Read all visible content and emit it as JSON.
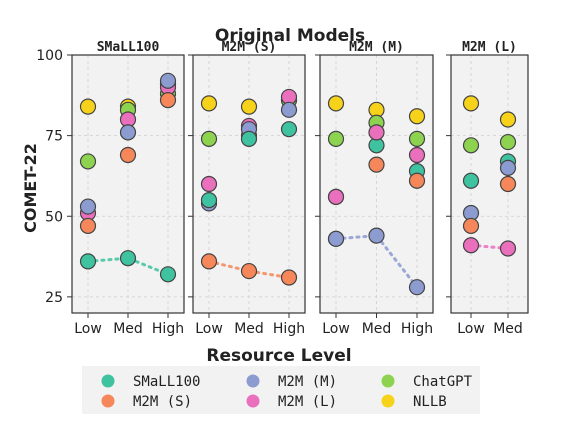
{
  "chart_data": {
    "type": "scatter",
    "title": "Original Models",
    "xlabel": "Resource Level",
    "ylabel": "COMET-22",
    "ylim": [
      20,
      100
    ],
    "yticks": [
      25,
      50,
      75,
      100
    ],
    "grid": true,
    "legend": {
      "placement": "bottom",
      "entries": [
        {
          "name": "SMaLL100",
          "color": "#3ec2a0"
        },
        {
          "name": "M2M (S)",
          "color": "#f5875a"
        },
        {
          "name": "M2M (M)",
          "color": "#8c9bd0"
        },
        {
          "name": "M2M (L)",
          "color": "#ea6fbd"
        },
        {
          "name": "ChatGPT",
          "color": "#8dd34f"
        },
        {
          "name": "NLLB",
          "color": "#f7d21a"
        }
      ]
    },
    "panels": [
      {
        "title": "SMaLL100",
        "categories": [
          "Low",
          "Med",
          "High"
        ],
        "highlight": "SMaLL100",
        "series": [
          {
            "name": "NLLB",
            "values": [
              84,
              84,
              91
            ]
          },
          {
            "name": "ChatGPT",
            "values": [
              67,
              83,
              88
            ]
          },
          {
            "name": "M2M (L)",
            "values": [
              51,
              80,
              90
            ]
          },
          {
            "name": "M2M (M)",
            "values": [
              53,
              76,
              92
            ]
          },
          {
            "name": "M2M (S)",
            "values": [
              47,
              69,
              86
            ]
          },
          {
            "name": "SMaLL100",
            "values": [
              36,
              37,
              32
            ]
          }
        ]
      },
      {
        "title": "M2M (S)",
        "categories": [
          "Low",
          "Med",
          "High"
        ],
        "highlight": "M2M (S)",
        "series": [
          {
            "name": "NLLB",
            "values": [
              85,
              84,
              86
            ]
          },
          {
            "name": "ChatGPT",
            "values": [
              74,
              75,
              86
            ]
          },
          {
            "name": "M2M (L)",
            "values": [
              60,
              78,
              87
            ]
          },
          {
            "name": "M2M (M)",
            "values": [
              54,
              77,
              83
            ]
          },
          {
            "name": "SMaLL100",
            "values": [
              55,
              74,
              77
            ]
          },
          {
            "name": "M2M (S)",
            "values": [
              36,
              33,
              31
            ]
          }
        ]
      },
      {
        "title": "M2M (M)",
        "categories": [
          "Low",
          "Med",
          "High"
        ],
        "highlight": "M2M (M)",
        "series": [
          {
            "name": "NLLB",
            "values": [
              85,
              83,
              81
            ]
          },
          {
            "name": "ChatGPT",
            "values": [
              74,
              79,
              74
            ]
          },
          {
            "name": "SMaLL100",
            "values": [
              56,
              72,
              64
            ]
          },
          {
            "name": "M2M (L)",
            "values": [
              56,
              76,
              69
            ]
          },
          {
            "name": "M2M (S)",
            "values": [
              43,
              66,
              61
            ]
          },
          {
            "name": "M2M (M)",
            "values": [
              43,
              44,
              28
            ]
          }
        ]
      },
      {
        "title": "M2M (L)",
        "categories": [
          "Low",
          "Med"
        ],
        "highlight": "M2M (L)",
        "series": [
          {
            "name": "NLLB",
            "values": [
              85,
              80
            ]
          },
          {
            "name": "ChatGPT",
            "values": [
              72,
              73
            ]
          },
          {
            "name": "SMaLL100",
            "values": [
              61,
              67
            ]
          },
          {
            "name": "M2M (M)",
            "values": [
              51,
              65
            ]
          },
          {
            "name": "M2M (S)",
            "values": [
              47,
              60
            ]
          },
          {
            "name": "M2M (L)",
            "values": [
              41,
              40
            ]
          }
        ]
      }
    ]
  }
}
